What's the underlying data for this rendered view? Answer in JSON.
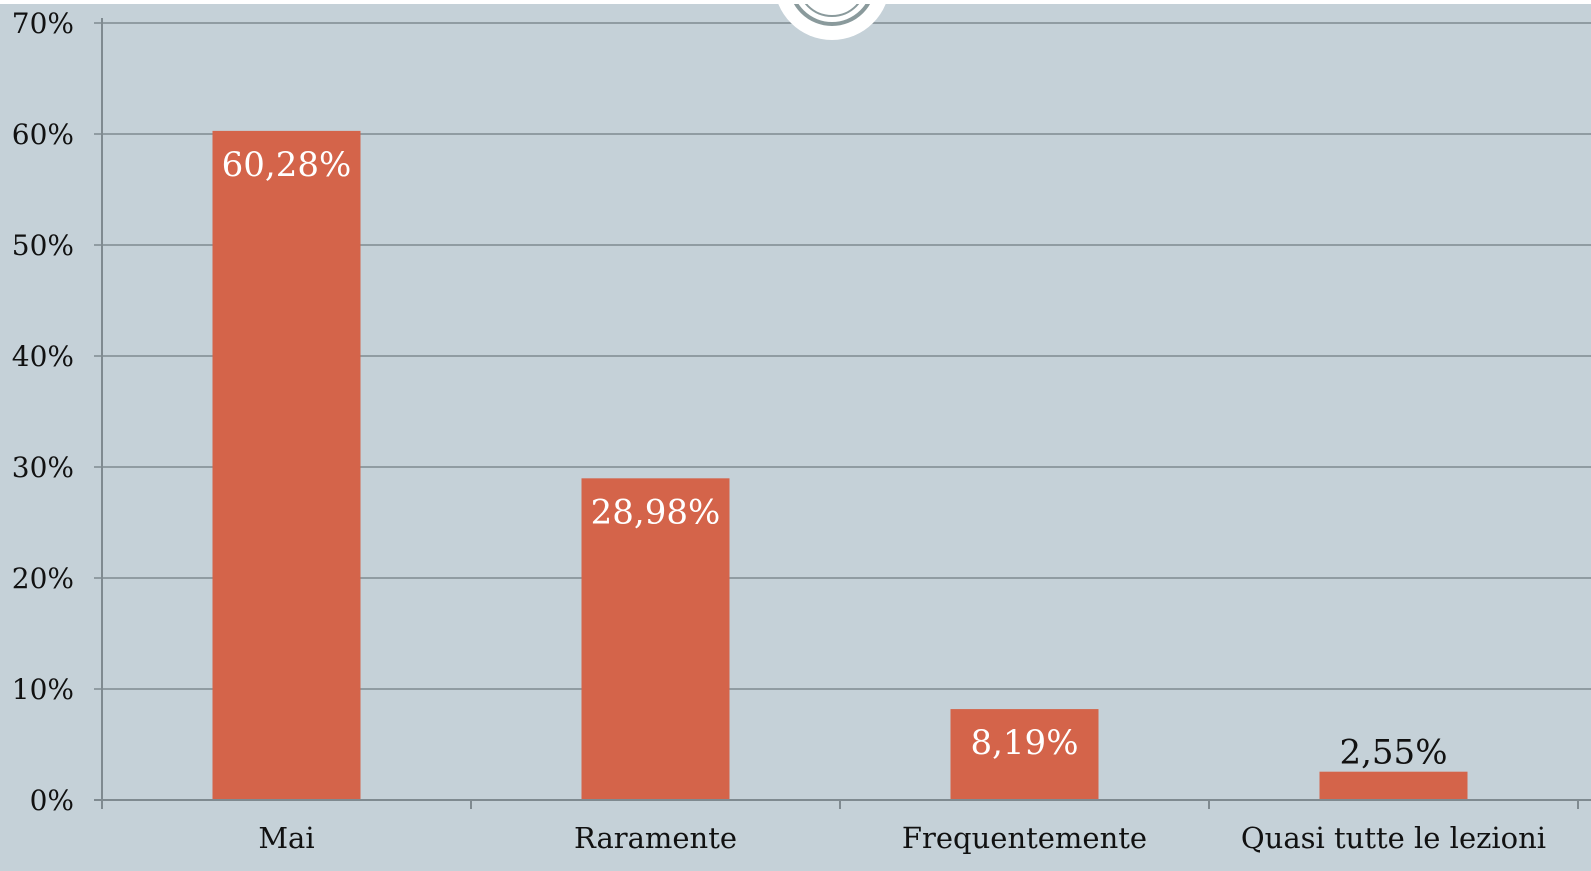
{
  "chart_data": {
    "type": "bar",
    "categories": [
      "Mai",
      "Raramente",
      "Frequentemente",
      "Quasi tutte le lezioni"
    ],
    "values": [
      60.28,
      28.98,
      8.19,
      2.55
    ],
    "value_labels": [
      "60,28%",
      "28,98%",
      "8,19%",
      "2,55%"
    ],
    "ylim": [
      0,
      70
    ],
    "yticks": [
      0,
      10,
      20,
      30,
      40,
      50,
      60,
      70
    ],
    "ytick_labels": [
      "0%",
      "10%",
      "20%",
      "30%",
      "40%",
      "50%",
      "60%",
      "70%"
    ],
    "grid": true,
    "colors": {
      "bar": "#d4644a",
      "background": "#c5d1d8",
      "grid": "#7f8a90",
      "axis": "#7f8a90",
      "label_inside": "#ffffff",
      "label_outside": "#111111",
      "tick_text": "#111111"
    }
  }
}
